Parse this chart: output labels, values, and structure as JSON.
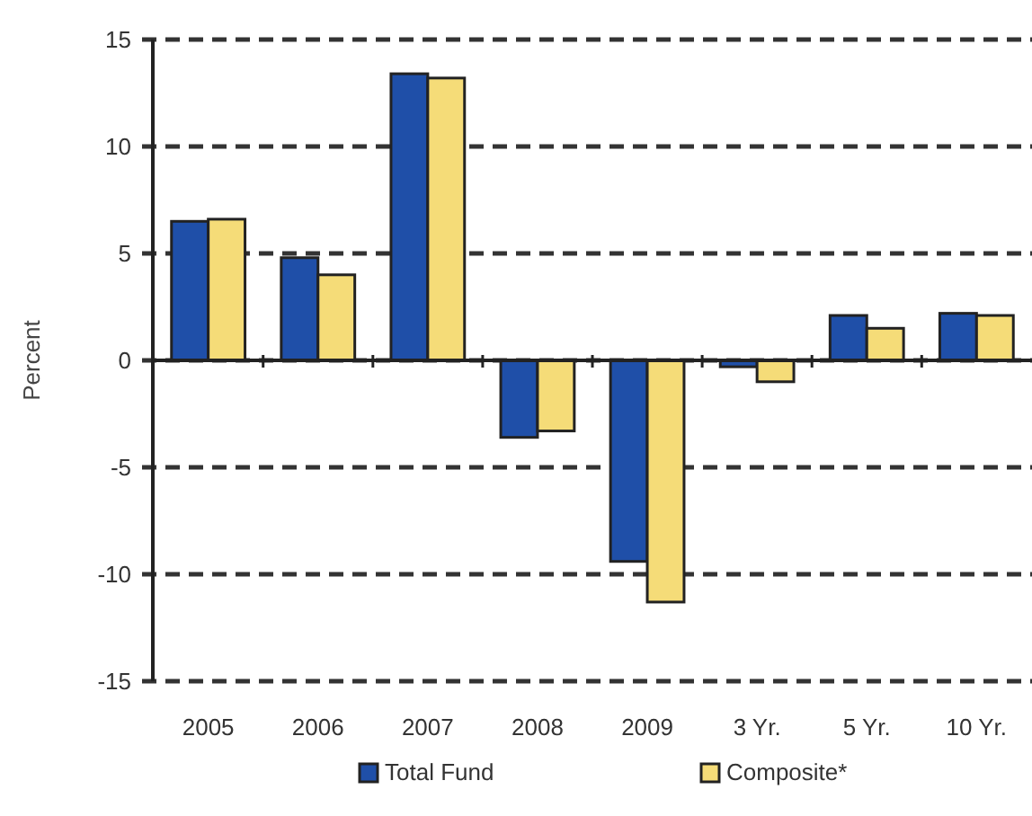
{
  "chart_data": {
    "type": "bar",
    "ylabel": "Percent",
    "categories": [
      "2005",
      "2006",
      "2007",
      "2008",
      "2009",
      "3 Yr.",
      "5 Yr.",
      "10 Yr."
    ],
    "series": [
      {
        "name": "Total Fund",
        "color": "#1f4fa8",
        "values": [
          6.5,
          4.8,
          13.4,
          -3.6,
          -9.4,
          -0.3,
          2.1,
          2.2
        ]
      },
      {
        "name": "Composite*",
        "color": "#f5dc78",
        "values": [
          6.6,
          4.0,
          13.2,
          -3.3,
          -11.3,
          -1.0,
          1.5,
          2.1
        ]
      }
    ],
    "ylim": [
      -15,
      15
    ],
    "yticks": [
      -15,
      -10,
      -5,
      0,
      5,
      10,
      15
    ],
    "grid": "y",
    "legend": "bottom"
  }
}
